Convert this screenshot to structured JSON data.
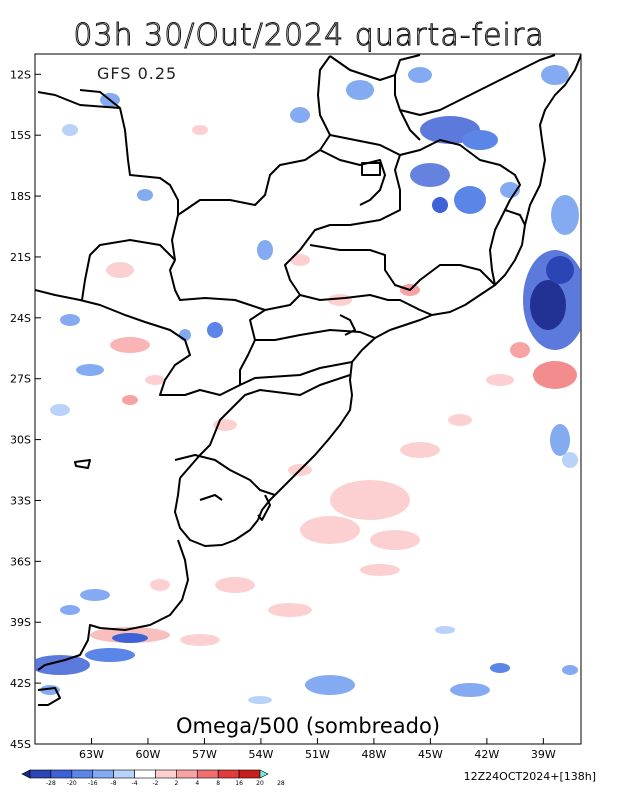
{
  "title": "03h 30/Out/2024 quarta-feira",
  "model_label": "GFS 0.25",
  "variable_label": "Omega/500 (sombreado)",
  "run_info": "12Z24OCT2024+[138h]",
  "map": {
    "lon_min": -66,
    "lon_max": -37,
    "lat_min": -45,
    "lat_max": -11
  },
  "lat_ticks": [
    {
      "value": -12,
      "label": "12S"
    },
    {
      "value": -15,
      "label": "15S"
    },
    {
      "value": -18,
      "label": "18S"
    },
    {
      "value": -21,
      "label": "21S"
    },
    {
      "value": -24,
      "label": "24S"
    },
    {
      "value": -27,
      "label": "27S"
    },
    {
      "value": -30,
      "label": "30S"
    },
    {
      "value": -33,
      "label": "33S"
    },
    {
      "value": -36,
      "label": "36S"
    },
    {
      "value": -39,
      "label": "39S"
    },
    {
      "value": -42,
      "label": "42S"
    },
    {
      "value": -45,
      "label": "45S"
    }
  ],
  "lon_ticks": [
    {
      "value": -63,
      "label": "63W"
    },
    {
      "value": -60,
      "label": "60W"
    },
    {
      "value": -57,
      "label": "57W"
    },
    {
      "value": -54,
      "label": "54W"
    },
    {
      "value": -51,
      "label": "51W"
    },
    {
      "value": -48,
      "label": "48W"
    },
    {
      "value": -45,
      "label": "45W"
    },
    {
      "value": -42,
      "label": "42W"
    },
    {
      "value": -39,
      "label": "39W"
    }
  ],
  "colorbar": {
    "labels": [
      "-28",
      "-20",
      "-16",
      "-8",
      "-4",
      "-2",
      "2",
      "4",
      "8",
      "16",
      "20",
      "28"
    ],
    "colors": [
      "#1b2a8c",
      "#2b45b5",
      "#3f63d6",
      "#5b86e8",
      "#84abf2",
      "#b8d2fa",
      "#ffffff",
      "#fcd0d0",
      "#f7a3a3",
      "#f06f6f",
      "#e23b3b",
      "#c81e1e",
      "#6ff0e6"
    ]
  }
}
